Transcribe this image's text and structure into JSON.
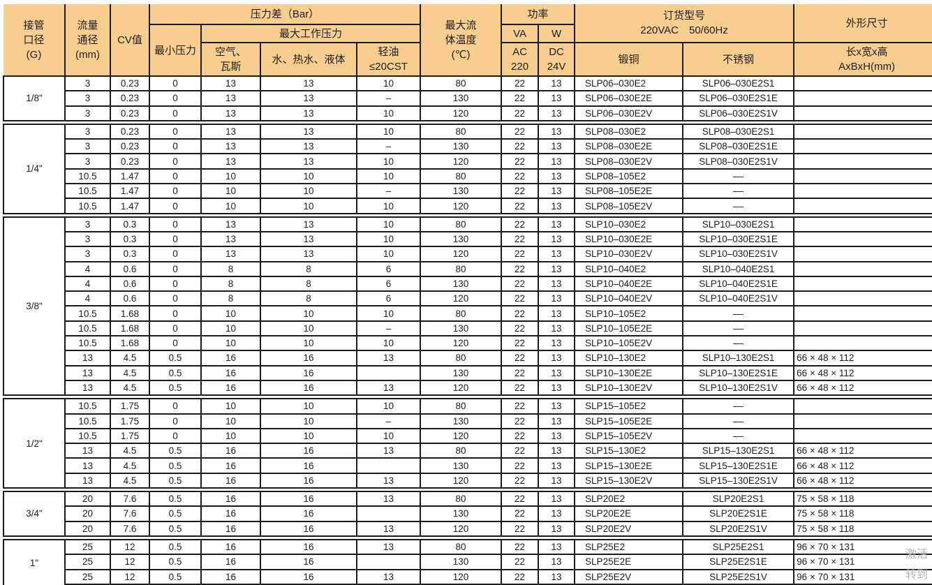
{
  "colors": {
    "header_bg": "#F8CE8F",
    "border": "#1c1c1c"
  },
  "header": {
    "pipe_size": "接管\n口径\n(G)",
    "flow_diameter": "流量\n通径\n(mm)",
    "cv": "CV值",
    "pressure_diff": "压力差（Bar）",
    "min_pressure": "最小压力",
    "max_working_pressure": "最大工作压力",
    "air_gas": "空气、\n瓦斯",
    "water": "水、热水、液体",
    "light_oil": "轻油\n≤20CST",
    "max_temp": "最大流\n体温度\n(℃)",
    "power": "功率",
    "va": "VA",
    "w": "W",
    "ac220": "AC\n220",
    "dc24v": "DC\n24V",
    "order_model": "订货型号\n220VAC　50/60Hz",
    "forged_copper": "锻铜",
    "stainless_steel": "不锈钢",
    "dimensions": "外形尺寸",
    "dims_formula": "长x宽x高\nAxBxH(mm)"
  },
  "columns": [
    "流量通径(mm)",
    "CV值",
    "最小压力",
    "空气、瓦斯",
    "水、热水、液体",
    "轻油≤20CST",
    "最大流体温度(℃)",
    "VA AC220",
    "W DC24V",
    "锻铜",
    "不锈钢",
    "长x宽x高 AxBxH(mm)"
  ],
  "sections": [
    {
      "size": "1/8\"",
      "rows": [
        [
          "3",
          "0.23",
          "0",
          "13",
          "13",
          "10",
          "80",
          "22",
          "13",
          "SLP06–030E2",
          "SLP06–030E2S1",
          ""
        ],
        [
          "3",
          "0.23",
          "0",
          "13",
          "13",
          "–",
          "130",
          "22",
          "13",
          "SLP06–030E2E",
          "SLP06–030E2S1E",
          ""
        ],
        [
          "3",
          "0.23",
          "0",
          "13",
          "13",
          "10",
          "120",
          "22",
          "13",
          "SLP06–030E2V",
          "SLP06–030E2S1V",
          ""
        ]
      ]
    },
    {
      "size": "1/4\"",
      "rows": [
        [
          "3",
          "0.23",
          "0",
          "13",
          "13",
          "10",
          "80",
          "22",
          "13",
          "SLP08–030E2",
          "SLP08–030E2S1",
          ""
        ],
        [
          "3",
          "0.23",
          "0",
          "13",
          "13",
          "–",
          "130",
          "22",
          "13",
          "SLP08–030E2E",
          "SLP08–030E2S1E",
          ""
        ],
        [
          "3",
          "0.23",
          "0",
          "13",
          "13",
          "10",
          "120",
          "22",
          "13",
          "SLP08–030E2V",
          "SLP08–030E2S1V",
          ""
        ],
        [
          "10.5",
          "1.47",
          "0",
          "10",
          "10",
          "10",
          "80",
          "22",
          "13",
          "SLP08–105E2",
          "––",
          ""
        ],
        [
          "10.5",
          "1.47",
          "0",
          "10",
          "10",
          "–",
          "130",
          "22",
          "13",
          "SLP08–105E2E",
          "––",
          ""
        ],
        [
          "10.5",
          "1.47",
          "0",
          "10",
          "10",
          "10",
          "120",
          "22",
          "13",
          "SLP08–105E2V",
          "––",
          ""
        ]
      ]
    },
    {
      "size": "3/8\"",
      "rows": [
        [
          "3",
          "0.3",
          "0",
          "13",
          "13",
          "10",
          "80",
          "22",
          "13",
          "SLP10–030E2",
          "SLP10–030E2S1",
          ""
        ],
        [
          "3",
          "0.3",
          "0",
          "13",
          "13",
          "10",
          "130",
          "22",
          "13",
          "SLP10–030E2E",
          "SLP10–030E2S1E",
          ""
        ],
        [
          "3",
          "0.3",
          "0",
          "13",
          "13",
          "10",
          "120",
          "22",
          "13",
          "SLP10–030E2V",
          "SLP10–030E2S1V",
          ""
        ],
        [
          "4",
          "0.6",
          "0",
          "8",
          "8",
          "6",
          "80",
          "22",
          "13",
          "SLP10–040E2",
          "SLP10–040E2S1",
          ""
        ],
        [
          "4",
          "0.6",
          "0",
          "8",
          "8",
          "6",
          "130",
          "22",
          "13",
          "SLP10–040E2E",
          "SLP10–040E2S1E",
          ""
        ],
        [
          "4",
          "0.6",
          "0",
          "8",
          "8",
          "6",
          "120",
          "22",
          "13",
          "SLP10–040E2V",
          "SLP10–040E2S1V",
          ""
        ],
        [
          "10.5",
          "1.68",
          "0",
          "10",
          "10",
          "10",
          "80",
          "22",
          "13",
          "SLP10–105E2",
          "––",
          ""
        ],
        [
          "10.5",
          "1.68",
          "0",
          "10",
          "10",
          "–",
          "130",
          "22",
          "13",
          "SLP10–105E2E",
          "––",
          ""
        ],
        [
          "10.5",
          "1.68",
          "0",
          "10",
          "10",
          "10",
          "120",
          "22",
          "13",
          "SLP10–105E2V",
          "––",
          ""
        ],
        [
          "13",
          "4.5",
          "0.5",
          "16",
          "16",
          "13",
          "80",
          "22",
          "13",
          "SLP10–130E2",
          "SLP10–130E2S1",
          "66 × 48 × 112"
        ],
        [
          "13",
          "4.5",
          "0.5",
          "16",
          "16",
          "",
          "130",
          "22",
          "13",
          "SLP10–130E2E",
          "SLP10–130E2S1E",
          "66 × 48 × 112"
        ],
        [
          "13",
          "4.5",
          "0.5",
          "16",
          "16",
          "13",
          "120",
          "22",
          "13",
          "SLP10–130E2V",
          "SLP10–130E2S1V",
          "66 × 48 × 112"
        ]
      ]
    },
    {
      "size": "1/2\"",
      "rows": [
        [
          "10.5",
          "1.75",
          "0",
          "10",
          "10",
          "10",
          "80",
          "22",
          "13",
          "SLP15–105E2",
          "––",
          ""
        ],
        [
          "10.5",
          "1.75",
          "0",
          "10",
          "10",
          "–",
          "130",
          "22",
          "13",
          "SLP15–105E2E",
          "––",
          ""
        ],
        [
          "10.5",
          "1.75",
          "0",
          "10",
          "10",
          "10",
          "120",
          "22",
          "13",
          "SLP15–105E2V",
          "––",
          ""
        ],
        [
          "13",
          "4.5",
          "0.5",
          "16",
          "16",
          "13",
          "80",
          "22",
          "13",
          "SLP15–130E2",
          "SLP15–130E2S1",
          "66 × 48 × 112"
        ],
        [
          "13",
          "4.5",
          "0.5",
          "16",
          "16",
          "",
          "130",
          "22",
          "13",
          "SLP15–130E2E",
          "SLP15–130E2S1E",
          "66 × 48 × 112"
        ],
        [
          "13",
          "4.5",
          "0.5",
          "16",
          "16",
          "13",
          "120",
          "22",
          "13",
          "SLP15–130E2V",
          "SLP15–130E2S1V",
          "66 × 48 × 112"
        ]
      ]
    },
    {
      "size": "3/4\"",
      "rows": [
        [
          "20",
          "7.6",
          "0.5",
          "16",
          "16",
          "13",
          "80",
          "22",
          "13",
          "SLP20E2",
          "SLP20E2S1",
          "75 × 58 × 118"
        ],
        [
          "20",
          "7.6",
          "0.5",
          "16",
          "16",
          "",
          "130",
          "22",
          "13",
          "SLP20E2E",
          "SLP20E2S1E",
          "75 × 58 × 118"
        ],
        [
          "20",
          "7.6",
          "0.5",
          "16",
          "16",
          "13",
          "120",
          "22",
          "13",
          "SLP20E2V",
          "SLP20E2S1V",
          "75 × 58 × 118"
        ]
      ]
    },
    {
      "size": "1\"",
      "rows": [
        [
          "25",
          "12",
          "0.5",
          "16",
          "16",
          "13",
          "80",
          "22",
          "13",
          "SLP25E2",
          "SLP25E2S1",
          "96 × 70 × 131"
        ],
        [
          "25",
          "12",
          "0.5",
          "16",
          "16",
          "",
          "130",
          "22",
          "13",
          "SLP25E2E",
          "SLP25E2S1E",
          "96 × 70 × 131"
        ],
        [
          "25",
          "12",
          "0.5",
          "16",
          "16",
          "13",
          "120",
          "22",
          "13",
          "SLP25E2V",
          "SLP25E2S1V",
          "96 × 70 × 131"
        ]
      ]
    }
  ],
  "watermark": {
    "line1": "激活",
    "line2": "转到"
  }
}
